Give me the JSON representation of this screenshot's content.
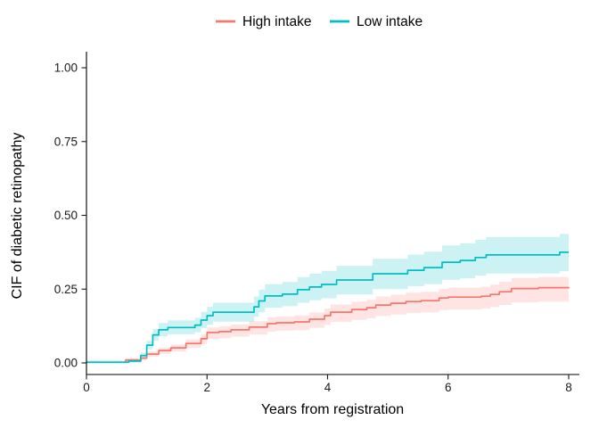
{
  "figure": {
    "background": "#ffffff",
    "legend": {
      "position": "top-center",
      "items": [
        {
          "label": "High intake",
          "color": "#F8766D"
        },
        {
          "label": "Low intake",
          "color": "#00BFC4"
        }
      ]
    },
    "axes": {
      "x": {
        "label": "Years from registration",
        "tick_labels": [
          "0",
          "2",
          "4",
          "6",
          "8"
        ],
        "tick_values": [
          0,
          2,
          4,
          6,
          8
        ],
        "range": [
          0,
          8
        ]
      },
      "y": {
        "label": "CIF of diabetic retinopathy",
        "tick_labels": [
          "0.00",
          "0.25",
          "0.50",
          "0.75",
          "1.00"
        ],
        "tick_values": [
          0,
          0.25,
          0.5,
          0.75,
          1
        ],
        "range": [
          0,
          1
        ]
      }
    }
  },
  "chart_data": {
    "type": "line",
    "subtype": "step-after cumulative incidence curves with 95% CI ribbons",
    "title": "",
    "xlabel": "Years from registration",
    "ylabel": "CIF of diabetic retinopathy",
    "xlim": [
      0,
      8
    ],
    "ylim": [
      0,
      1
    ],
    "grid": false,
    "legend_position": "top",
    "band_opacity": 0.2,
    "series": [
      {
        "name": "High intake",
        "color": "#F8766D",
        "x": [
          0,
          0.65,
          0.9,
          1.0,
          1.2,
          1.4,
          1.65,
          1.9,
          2.0,
          2.2,
          2.4,
          2.7,
          3.0,
          3.15,
          3.45,
          3.7,
          3.95,
          4.05,
          4.4,
          4.65,
          4.8,
          5.05,
          5.3,
          5.55,
          5.85,
          6.0,
          6.55,
          6.7,
          6.85,
          7.05,
          7.5,
          8.0
        ],
        "y": [
          0.002,
          0.01,
          0.016,
          0.03,
          0.042,
          0.051,
          0.066,
          0.082,
          0.103,
          0.106,
          0.112,
          0.121,
          0.133,
          0.136,
          0.139,
          0.148,
          0.16,
          0.172,
          0.181,
          0.187,
          0.196,
          0.202,
          0.208,
          0.211,
          0.22,
          0.223,
          0.226,
          0.232,
          0.241,
          0.252,
          0.255,
          0.257
        ],
        "lower": [
          0,
          0.004,
          0.009,
          0.021,
          0.031,
          0.038,
          0.051,
          0.064,
          0.081,
          0.084,
          0.089,
          0.096,
          0.106,
          0.109,
          0.111,
          0.119,
          0.129,
          0.139,
          0.146,
          0.151,
          0.159,
          0.164,
          0.169,
          0.171,
          0.179,
          0.181,
          0.184,
          0.189,
          0.196,
          0.205,
          0.208,
          0.209
        ],
        "upper": [
          0.007,
          0.016,
          0.023,
          0.039,
          0.052,
          0.062,
          0.079,
          0.097,
          0.12,
          0.124,
          0.13,
          0.141,
          0.154,
          0.157,
          0.161,
          0.171,
          0.184,
          0.198,
          0.208,
          0.214,
          0.225,
          0.231,
          0.238,
          0.241,
          0.251,
          0.255,
          0.258,
          0.265,
          0.275,
          0.287,
          0.291,
          0.293
        ]
      },
      {
        "name": "Low intake",
        "color": "#00BFC4",
        "x": [
          0,
          0.7,
          0.9,
          1.0,
          1.1,
          1.2,
          1.35,
          1.8,
          1.9,
          2.0,
          2.1,
          2.78,
          2.86,
          2.96,
          3.25,
          3.5,
          3.7,
          3.9,
          4.15,
          4.75,
          5.33,
          5.6,
          5.9,
          6.2,
          6.45,
          6.63,
          7.85,
          8.0
        ],
        "y": [
          0.002,
          0.006,
          0.025,
          0.06,
          0.095,
          0.112,
          0.12,
          0.128,
          0.145,
          0.16,
          0.172,
          0.19,
          0.21,
          0.227,
          0.233,
          0.248,
          0.257,
          0.266,
          0.281,
          0.302,
          0.314,
          0.323,
          0.341,
          0.347,
          0.357,
          0.366,
          0.375,
          0.375
        ],
        "lower": [
          0,
          0.001,
          0.017,
          0.046,
          0.076,
          0.09,
          0.097,
          0.104,
          0.118,
          0.13,
          0.14,
          0.156,
          0.172,
          0.187,
          0.192,
          0.204,
          0.212,
          0.219,
          0.232,
          0.25,
          0.26,
          0.267,
          0.282,
          0.287,
          0.296,
          0.303,
          0.311,
          0.311
        ],
        "upper": [
          0.008,
          0.013,
          0.035,
          0.075,
          0.115,
          0.135,
          0.144,
          0.153,
          0.173,
          0.19,
          0.204,
          0.225,
          0.248,
          0.267,
          0.274,
          0.291,
          0.302,
          0.312,
          0.329,
          0.353,
          0.367,
          0.377,
          0.398,
          0.405,
          0.417,
          0.427,
          0.437,
          0.437
        ]
      }
    ]
  }
}
